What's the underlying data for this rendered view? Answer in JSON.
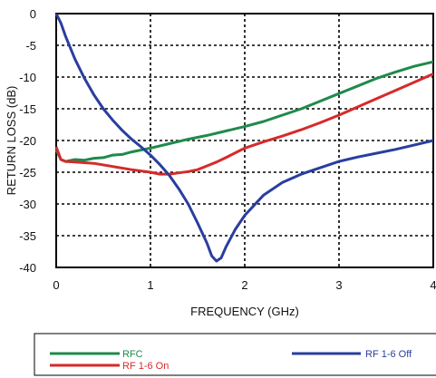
{
  "chart_data": {
    "type": "line",
    "title": "",
    "xlabel": "FREQUENCY (GHz)",
    "ylabel": "RETURN LOSS (dB)",
    "xlim": [
      0,
      4
    ],
    "ylim": [
      -40,
      0
    ],
    "x_ticks": [
      "0",
      "1",
      "2",
      "3",
      "4"
    ],
    "y_ticks": [
      "0",
      "-5",
      "-10",
      "-15",
      "-20",
      "-25",
      "-30",
      "-35",
      "-40"
    ],
    "grid": true,
    "legend_position": "bottom",
    "series": [
      {
        "name": "RFC",
        "color": "#1f8a4c",
        "points": [
          [
            0.0,
            -21.5
          ],
          [
            0.05,
            -23.0
          ],
          [
            0.1,
            -23.3
          ],
          [
            0.2,
            -23.0
          ],
          [
            0.3,
            -23.1
          ],
          [
            0.4,
            -22.8
          ],
          [
            0.5,
            -22.7
          ],
          [
            0.6,
            -22.3
          ],
          [
            0.7,
            -22.2
          ],
          [
            0.8,
            -21.8
          ],
          [
            0.9,
            -21.5
          ],
          [
            1.0,
            -21.2
          ],
          [
            1.2,
            -20.5
          ],
          [
            1.4,
            -19.8
          ],
          [
            1.6,
            -19.2
          ],
          [
            1.8,
            -18.5
          ],
          [
            2.0,
            -17.8
          ],
          [
            2.2,
            -17.0
          ],
          [
            2.4,
            -16.0
          ],
          [
            2.6,
            -15.0
          ],
          [
            2.8,
            -13.8
          ],
          [
            3.0,
            -12.6
          ],
          [
            3.2,
            -11.4
          ],
          [
            3.4,
            -10.2
          ],
          [
            3.6,
            -9.2
          ],
          [
            3.8,
            -8.3
          ],
          [
            4.0,
            -7.6
          ]
        ]
      },
      {
        "name": "RF 1-6 On",
        "color": "#d62a2a",
        "points": [
          [
            0.0,
            -21.0
          ],
          [
            0.05,
            -23.0
          ],
          [
            0.1,
            -23.3
          ],
          [
            0.2,
            -23.4
          ],
          [
            0.4,
            -23.6
          ],
          [
            0.6,
            -24.1
          ],
          [
            0.8,
            -24.6
          ],
          [
            1.0,
            -25.0
          ],
          [
            1.1,
            -25.3
          ],
          [
            1.2,
            -25.3
          ],
          [
            1.3,
            -25.1
          ],
          [
            1.4,
            -24.9
          ],
          [
            1.5,
            -24.6
          ],
          [
            1.6,
            -24.0
          ],
          [
            1.7,
            -23.4
          ],
          [
            1.8,
            -22.7
          ],
          [
            2.0,
            -21.2
          ],
          [
            2.2,
            -20.2
          ],
          [
            2.4,
            -19.3
          ],
          [
            2.6,
            -18.3
          ],
          [
            2.8,
            -17.2
          ],
          [
            3.0,
            -16.0
          ],
          [
            3.2,
            -14.7
          ],
          [
            3.4,
            -13.4
          ],
          [
            3.6,
            -12.1
          ],
          [
            3.8,
            -10.8
          ],
          [
            4.0,
            -9.5
          ]
        ]
      },
      {
        "name": "RF 1-6 Off",
        "color": "#2a3e9e",
        "points": [
          [
            0.0,
            0.0
          ],
          [
            0.05,
            -1.5
          ],
          [
            0.1,
            -3.6
          ],
          [
            0.2,
            -7.2
          ],
          [
            0.3,
            -10.2
          ],
          [
            0.4,
            -12.8
          ],
          [
            0.5,
            -15.0
          ],
          [
            0.6,
            -16.8
          ],
          [
            0.7,
            -18.4
          ],
          [
            0.8,
            -19.8
          ],
          [
            0.9,
            -21.0
          ],
          [
            1.0,
            -22.3
          ],
          [
            1.1,
            -23.8
          ],
          [
            1.2,
            -25.5
          ],
          [
            1.3,
            -27.6
          ],
          [
            1.4,
            -30.0
          ],
          [
            1.5,
            -33.0
          ],
          [
            1.6,
            -36.2
          ],
          [
            1.65,
            -38.2
          ],
          [
            1.7,
            -39.0
          ],
          [
            1.75,
            -38.5
          ],
          [
            1.8,
            -36.8
          ],
          [
            1.9,
            -34.0
          ],
          [
            2.0,
            -31.8
          ],
          [
            2.2,
            -28.6
          ],
          [
            2.4,
            -26.6
          ],
          [
            2.6,
            -25.3
          ],
          [
            2.8,
            -24.3
          ],
          [
            3.0,
            -23.3
          ],
          [
            3.2,
            -22.6
          ],
          [
            3.4,
            -22.0
          ],
          [
            3.6,
            -21.4
          ],
          [
            3.8,
            -20.7
          ],
          [
            4.0,
            -20.0
          ]
        ]
      }
    ]
  }
}
